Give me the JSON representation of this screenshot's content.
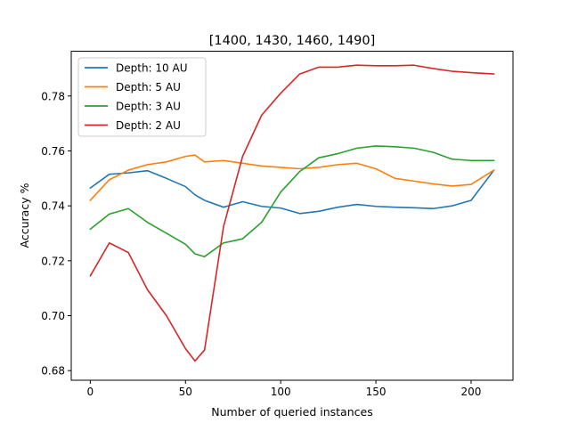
{
  "chart_data": {
    "type": "line",
    "title": "[1400, 1430, 1460, 1490]",
    "xlabel": "Number of queried instances",
    "ylabel": "Accuracy %",
    "xlim": [
      -10,
      222
    ],
    "ylim": [
      0.6765,
      0.7963
    ],
    "xticks": [
      0,
      50,
      100,
      150,
      200
    ],
    "xtick_labels": [
      "0",
      "50",
      "100",
      "150",
      "200"
    ],
    "yticks": [
      0.68,
      0.7,
      0.72,
      0.74,
      0.76,
      0.78
    ],
    "ytick_labels": [
      "0.68",
      "0.70",
      "0.72",
      "0.74",
      "0.76",
      "0.78"
    ],
    "grid": false,
    "legend_position": "upper-left",
    "x": [
      0,
      10,
      20,
      30,
      40,
      50,
      55,
      60,
      70,
      80,
      90,
      100,
      110,
      120,
      130,
      140,
      150,
      160,
      170,
      180,
      190,
      200,
      212
    ],
    "series": [
      {
        "name": "Depth: 10 AU",
        "color": "#1f77b4",
        "values": [
          0.7465,
          0.7515,
          0.752,
          0.7528,
          0.75,
          0.747,
          0.744,
          0.742,
          0.7395,
          0.7415,
          0.7398,
          0.7392,
          0.7372,
          0.738,
          0.7395,
          0.7405,
          0.7398,
          0.7395,
          0.7393,
          0.739,
          0.74,
          0.742,
          0.753
        ]
      },
      {
        "name": "Depth: 5 AU",
        "color": "#ff7f0e",
        "values": [
          0.742,
          0.7495,
          0.753,
          0.755,
          0.756,
          0.758,
          0.7585,
          0.756,
          0.7565,
          0.7555,
          0.7545,
          0.754,
          0.7535,
          0.754,
          0.755,
          0.7555,
          0.7535,
          0.75,
          0.749,
          0.748,
          0.7472,
          0.7478,
          0.753
        ]
      },
      {
        "name": "Depth: 3 AU",
        "color": "#2ca02c",
        "values": [
          0.7315,
          0.737,
          0.739,
          0.734,
          0.73,
          0.726,
          0.7225,
          0.7215,
          0.7265,
          0.728,
          0.734,
          0.745,
          0.7525,
          0.7575,
          0.759,
          0.761,
          0.7618,
          0.7615,
          0.761,
          0.7595,
          0.757,
          0.7565,
          0.7565
        ]
      },
      {
        "name": "Depth: 2 AU",
        "color": "#d62728",
        "values": [
          0.7145,
          0.7265,
          0.723,
          0.7095,
          0.7,
          0.688,
          0.6835,
          0.6875,
          0.7325,
          0.758,
          0.773,
          0.781,
          0.788,
          0.7905,
          0.7905,
          0.7912,
          0.791,
          0.791,
          0.7912,
          0.79,
          0.789,
          0.7885,
          0.788
        ]
      }
    ]
  }
}
